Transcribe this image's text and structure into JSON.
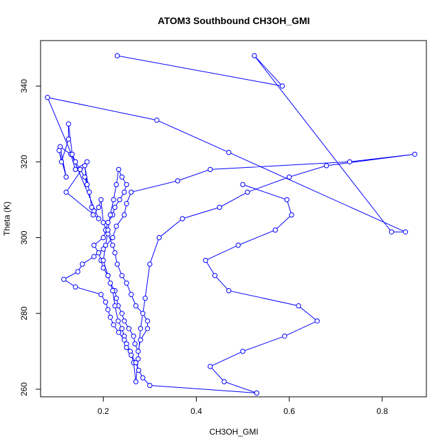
{
  "chart_data": {
    "type": "line",
    "title": "ATOM3 Southbound CH3OH_GMI",
    "xlabel": "CH3OH_GMI",
    "ylabel": "Theta (K)",
    "xlim": [
      0.065,
      0.895
    ],
    "ylim": [
      258,
      352
    ],
    "xticks": [
      {
        "value": 0.2,
        "label": "0.2"
      },
      {
        "value": 0.4,
        "label": "0.4"
      },
      {
        "value": 0.6,
        "label": "0.6"
      },
      {
        "value": 0.8,
        "label": "0.8"
      }
    ],
    "yticks": [
      {
        "value": 260,
        "label": "260"
      },
      {
        "value": 280,
        "label": "280"
      },
      {
        "value": 300,
        "label": "300"
      },
      {
        "value": 320,
        "label": "320"
      },
      {
        "value": 340,
        "label": "340"
      }
    ],
    "grid": false,
    "series_color": "#0000ff",
    "series": [
      {
        "x": [
          0.23,
          0.585,
          0.525,
          0.82,
          0.85,
          0.47,
          0.315,
          0.08,
          0.19,
          0.12,
          0.165,
          0.14,
          0.13,
          0.107,
          0.12,
          0.105,
          0.11,
          0.125,
          0.125,
          0.133,
          0.14,
          0.15,
          0.16,
          0.165,
          0.16,
          0.17,
          0.175,
          0.18,
          0.178,
          0.19,
          0.195,
          0.2,
          0.21,
          0.22,
          0.225,
          0.23,
          0.24,
          0.25,
          0.26,
          0.27,
          0.285,
          0.295,
          0.295,
          0.28,
          0.275,
          0.268,
          0.265,
          0.255,
          0.245,
          0.24,
          0.232,
          0.228,
          0.225,
          0.215,
          0.21,
          0.2,
          0.195,
          0.19,
          0.18,
          0.2,
          0.205,
          0.21,
          0.22,
          0.225,
          0.235,
          0.245,
          0.25,
          0.24,
          0.233,
          0.228,
          0.222,
          0.215,
          0.21,
          0.205,
          0.2,
          0.21,
          0.22,
          0.225,
          0.232,
          0.24,
          0.245,
          0.25,
          0.258,
          0.265,
          0.27,
          0.275,
          0.28,
          0.29,
          0.3,
          0.32,
          0.37,
          0.45,
          0.51,
          0.6,
          0.68,
          0.87,
          0.73,
          0.43,
          0.36,
          0.26,
          0.25,
          0.245,
          0.228,
          0.22,
          0.2,
          0.18,
          0.155,
          0.145,
          0.115,
          0.14,
          0.195,
          0.205,
          0.21,
          0.215,
          0.222,
          0.233,
          0.245,
          0.25,
          0.26,
          0.27,
          0.276,
          0.285,
          0.3,
          0.53,
          0.46,
          0.43,
          0.5,
          0.59,
          0.66,
          0.62,
          0.47,
          0.44,
          0.42,
          0.49,
          0.57,
          0.605,
          0.595,
          0.5
        ],
        "y": [
          348,
          340,
          348,
          301.5,
          301.5,
          322.5,
          331,
          337,
          305,
          312,
          320,
          318,
          322,
          324,
          316,
          323,
          320,
          326,
          330,
          322,
          320,
          318,
          316,
          314,
          319,
          312,
          308,
          307,
          306,
          308,
          310,
          304,
          301,
          298,
          296,
          293,
          290,
          288,
          285,
          282,
          280,
          278,
          276,
          273,
          270,
          272,
          274,
          276,
          278,
          280,
          282,
          284,
          286,
          288,
          290,
          292,
          294,
          296,
          298,
          300,
          302,
          304,
          306,
          308,
          310,
          312,
          314,
          316,
          318,
          314,
          310,
          306,
          302,
          298,
          294,
          290,
          286,
          282,
          278,
          276,
          274,
          272,
          270,
          267,
          262,
          268,
          276,
          284,
          293,
          300,
          305,
          308,
          312,
          316,
          319,
          322,
          320,
          318,
          315,
          312,
          309,
          306,
          303,
          300,
          297,
          295,
          293,
          291,
          289,
          287,
          285,
          283,
          281,
          279,
          277,
          275,
          273,
          271,
          269,
          267,
          265,
          263,
          261,
          259,
          262,
          266,
          270,
          274,
          278,
          282,
          286,
          290,
          294,
          298,
          302,
          306,
          310,
          314
        ]
      }
    ]
  }
}
